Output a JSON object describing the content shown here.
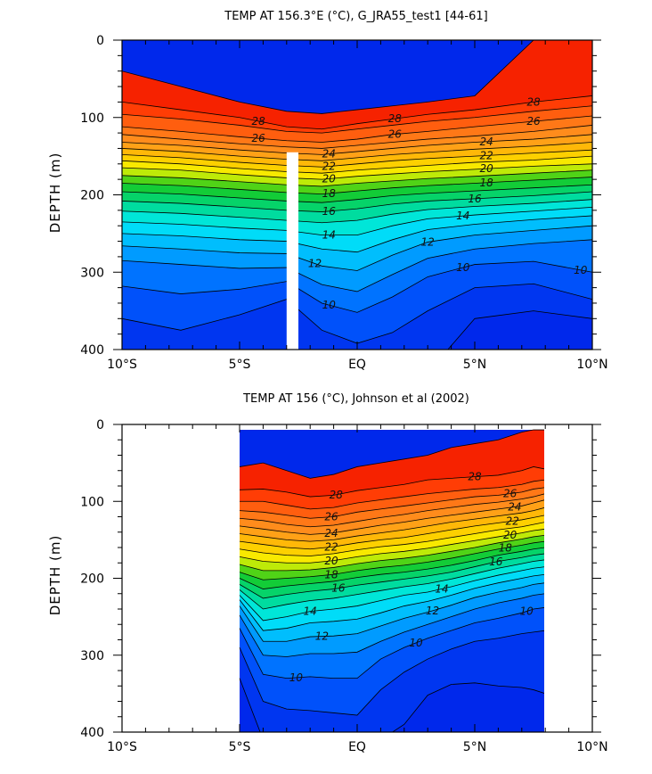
{
  "chart_data": [
    {
      "type": "contour",
      "title": "TEMP AT 156.3°E (°C), G_JRA55_test1 [44-61]",
      "ylabel": "DEPTH (m)",
      "xlabel": "",
      "xlim": [
        -10,
        10
      ],
      "ylim": [
        0,
        400
      ],
      "y_inverted": true,
      "x_ticks": [
        -10,
        -5,
        0,
        5,
        10
      ],
      "x_tick_labels": [
        "10°S",
        "5°S",
        "EQ",
        "5°N",
        "10°N"
      ],
      "y_ticks": [
        0,
        100,
        200,
        300,
        400
      ],
      "y_tick_labels": [
        "0",
        "100",
        "200",
        "300",
        "400"
      ],
      "data_extent_x": [
        -10,
        10
      ],
      "masked_column": {
        "x": [
          -3.0,
          -2.5
        ],
        "depth": [
          145,
          400
        ]
      },
      "contour_levels": [
        8,
        9,
        10,
        11,
        12,
        13,
        14,
        15,
        16,
        17,
        18,
        19,
        20,
        21,
        22,
        23,
        24,
        25,
        26,
        27,
        28,
        29
      ],
      "labeled_levels": [
        "28",
        "28",
        "28",
        "26",
        "26",
        "26",
        "24",
        "24",
        "22",
        "22",
        "20",
        "20",
        "18",
        "18",
        "16",
        "16",
        "14",
        "14",
        "12",
        "12",
        "10",
        "10",
        "10"
      ],
      "isotherm_depths": {
        "x": [
          -10,
          -7.5,
          -5,
          -3,
          -1.5,
          0,
          1.5,
          3,
          5,
          7.5,
          10
        ],
        "levels": [
          {
            "t": 29,
            "d": [
              40,
              60,
              80,
              92,
              95,
              90,
              85,
              80,
              72,
              0,
              0
            ]
          },
          {
            "t": 28,
            "d": [
              80,
              90,
              100,
              112,
              115,
              108,
              102,
              96,
              90,
              80,
              72
            ]
          },
          {
            "t": 27,
            "d": [
              96,
              102,
              110,
              118,
              120,
              115,
              110,
              105,
              100,
              92,
              85
            ]
          },
          {
            "t": 26,
            "d": [
              112,
              118,
              125,
              130,
              132,
              128,
              122,
              118,
              112,
              105,
              98
            ]
          },
          {
            "t": 25,
            "d": [
              122,
              128,
              134,
              138,
              140,
              136,
              132,
              128,
              124,
              118,
              110
            ]
          },
          {
            "t": 24,
            "d": [
              132,
              136,
              142,
              146,
              148,
              144,
              140,
              136,
              132,
              128,
              122
            ]
          },
          {
            "t": 23,
            "d": [
              140,
              144,
              150,
              154,
              156,
              152,
              148,
              145,
              141,
              137,
              132
            ]
          },
          {
            "t": 22,
            "d": [
              148,
              152,
              158,
              162,
              164,
              160,
              156,
              153,
              150,
              146,
              142
            ]
          },
          {
            "t": 21,
            "d": [
              156,
              160,
              166,
              170,
              172,
              168,
              165,
              162,
              158,
              155,
              150
            ]
          },
          {
            "t": 20,
            "d": [
              165,
              168,
              174,
              178,
              180,
              176,
              173,
              170,
              167,
              163,
              160
            ]
          },
          {
            "t": 19,
            "d": [
              175,
              178,
              183,
              187,
              189,
              185,
              182,
              179,
              176,
              172,
              168
            ]
          },
          {
            "t": 18,
            "d": [
              185,
              188,
              193,
              197,
              199,
              195,
              191,
              188,
              185,
              181,
              177
            ]
          },
          {
            "t": 17,
            "d": [
              196,
              199,
              204,
              208,
              210,
              206,
              201,
              198,
              195,
              191,
              187
            ]
          },
          {
            "t": 16,
            "d": [
              208,
              211,
              216,
              220,
              222,
              218,
              212,
              208,
              205,
              201,
              196
            ]
          },
          {
            "t": 15,
            "d": [
              221,
              224,
              229,
              233,
              236,
              233,
              225,
              219,
              215,
              211,
              206
            ]
          },
          {
            "t": 14,
            "d": [
              235,
              238,
              243,
              246,
              252,
              252,
              240,
              231,
              226,
              221,
              216
            ]
          },
          {
            "t": 13,
            "d": [
              250,
              253,
              258,
              260,
              270,
              274,
              258,
              245,
              238,
              232,
              227
            ]
          },
          {
            "t": 12,
            "d": [
              266,
              270,
              275,
              276,
              292,
              298,
              278,
              261,
              252,
              246,
              240
            ]
          },
          {
            "t": 11,
            "d": [
              285,
              290,
              295,
              294,
              316,
              325,
              303,
              282,
              270,
              263,
              258
            ]
          },
          {
            "t": 10,
            "d": [
              318,
              328,
              322,
              312,
              340,
              352,
              332,
              306,
              290,
              286,
              300
            ]
          },
          {
            "t": 9,
            "d": [
              360,
              375,
              355,
              335,
              375,
              392,
              378,
              350,
              320,
              315,
              335
            ]
          },
          {
            "t": 8,
            "d": [
              420,
              440,
              420,
              400,
              450,
              460,
              450,
              430,
              360,
              350,
              360
            ]
          }
        ]
      }
    },
    {
      "type": "contour",
      "title": "TEMP AT 156 (°C), Johnson et al (2002)",
      "ylabel": "DEPTH (m)",
      "xlabel": "",
      "xlim": [
        -10,
        10
      ],
      "ylim": [
        0,
        400
      ],
      "y_inverted": true,
      "x_ticks": [
        -10,
        -5,
        0,
        5,
        10
      ],
      "x_tick_labels": [
        "10°S",
        "5°S",
        "EQ",
        "5°N",
        "10°N"
      ],
      "y_ticks": [
        0,
        100,
        200,
        300,
        400
      ],
      "y_tick_labels": [
        "0",
        "100",
        "200",
        "300",
        "400"
      ],
      "data_extent_x": [
        -5,
        8
      ],
      "data_extent_depth": [
        7,
        400
      ],
      "contour_levels": [
        8,
        9,
        10,
        11,
        12,
        13,
        14,
        15,
        16,
        17,
        18,
        19,
        20,
        21,
        22,
        23,
        24,
        25,
        26,
        27,
        28,
        29
      ],
      "labeled_levels": [
        "28",
        "28",
        "26",
        "26",
        "24",
        "24",
        "22",
        "22",
        "20",
        "20",
        "18",
        "18",
        "16",
        "16",
        "14",
        "14",
        "12",
        "12",
        "10",
        "10",
        "10"
      ],
      "isotherm_depths": {
        "x": [
          -5,
          -4,
          -3,
          -2,
          -1,
          0,
          1,
          2,
          3,
          4,
          5,
          6,
          7,
          7.5,
          8
        ],
        "levels": [
          {
            "t": 29,
            "d": [
              55,
              50,
              60,
              70,
              65,
              55,
              50,
              45,
              40,
              30,
              25,
              20,
              10,
              0,
              0
            ]
          },
          {
            "t": 28,
            "d": [
              85,
              84,
              88,
              94,
              92,
              86,
              82,
              78,
              72,
              70,
              68,
              66,
              60,
              55,
              58
            ]
          },
          {
            "t": 27,
            "d": [
              100,
              100,
              105,
              110,
              108,
              102,
              98,
              94,
              90,
              87,
              84,
              82,
              78,
              74,
              72
            ]
          },
          {
            "t": 26,
            "d": [
              112,
              114,
              118,
              122,
              120,
              114,
              110,
              106,
              102,
              98,
              94,
              92,
              88,
              84,
              82
            ]
          },
          {
            "t": 25,
            "d": [
              122,
              125,
              130,
              133,
              131,
              126,
              121,
              117,
              112,
              108,
              104,
              101,
              97,
              94,
              90
            ]
          },
          {
            "t": 24,
            "d": [
              132,
              136,
              140,
              143,
              141,
              136,
              131,
              127,
              122,
              118,
              114,
              110,
              106,
              102,
              98
            ]
          },
          {
            "t": 23,
            "d": [
              142,
              146,
              150,
              152,
              150,
              145,
              141,
              137,
              132,
              127,
              123,
              119,
              115,
              112,
              108
            ]
          },
          {
            "t": 22,
            "d": [
              152,
              156,
              160,
              162,
              159,
              154,
              150,
              147,
              142,
              137,
              132,
              128,
              124,
              121,
              118
            ]
          },
          {
            "t": 21,
            "d": [
              162,
              167,
              170,
              171,
              168,
              163,
              159,
              156,
              152,
              147,
              142,
              137,
              133,
              130,
              127
            ]
          },
          {
            "t": 20,
            "d": [
              172,
              178,
              180,
              180,
              177,
              172,
              168,
              165,
              161,
              156,
              151,
              146,
              141,
              138,
              136
            ]
          },
          {
            "t": 19,
            "d": [
              182,
              190,
              190,
              189,
              186,
              181,
              177,
              174,
              170,
              165,
              160,
              154,
              149,
              146,
              144
            ]
          },
          {
            "t": 18,
            "d": [
              192,
              202,
              200,
              198,
              195,
              190,
              186,
              183,
              179,
              174,
              168,
              162,
              157,
              154,
              152
            ]
          },
          {
            "t": 17,
            "d": [
              200,
              214,
              210,
              207,
              204,
              199,
              195,
              192,
              188,
              183,
              177,
              170,
              165,
              162,
              160
            ]
          },
          {
            "t": 16,
            "d": [
              208,
              226,
              221,
              217,
              214,
              209,
              205,
              201,
              197,
              192,
              185,
              178,
              173,
              170,
              168
            ]
          },
          {
            "t": 15,
            "d": [
              215,
              240,
              234,
              229,
              226,
              221,
              216,
              211,
              207,
              201,
              194,
              187,
              181,
              178,
              176
            ]
          },
          {
            "t": 14,
            "d": [
              222,
              255,
              250,
              243,
              240,
              236,
              229,
              222,
              218,
              211,
              203,
              196,
              190,
              187,
              185
            ]
          },
          {
            "t": 13,
            "d": [
              228,
              268,
              265,
              258,
              256,
              253,
              245,
              236,
              230,
              222,
              213,
              206,
              200,
              197,
              195
            ]
          },
          {
            "t": 12,
            "d": [
              236,
              282,
              282,
              276,
              275,
              272,
              262,
              252,
              244,
              235,
              225,
              218,
              212,
              208,
              206
            ]
          },
          {
            "t": 11,
            "d": [
              248,
              300,
              302,
              298,
              298,
              296,
              282,
              270,
              260,
              250,
              240,
              232,
              226,
              222,
              220
            ]
          },
          {
            "t": 10,
            "d": [
              265,
              325,
              330,
              328,
              330,
              330,
              305,
              290,
              278,
              268,
              258,
              252,
              245,
              240,
              238
            ]
          },
          {
            "t": 9,
            "d": [
              290,
              360,
              370,
              372,
              375,
              378,
              345,
              322,
              305,
              292,
              282,
              278,
              272,
              270,
              268
            ]
          },
          {
            "t": 8,
            "d": [
              330,
              410,
              420,
              420,
              420,
              420,
              410,
              390,
              352,
              338,
              336,
              340,
              342,
              345,
              350
            ]
          }
        ]
      }
    }
  ]
}
